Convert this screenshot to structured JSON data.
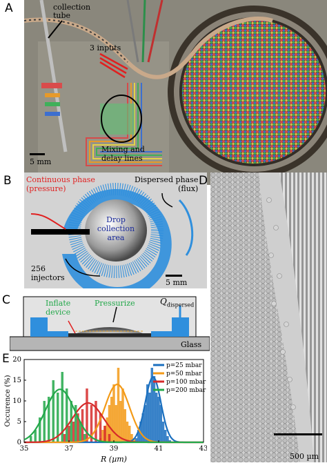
{
  "panels": {
    "A": {
      "label": "A",
      "annotations": {
        "collection_tube": "collection\ntube",
        "inputs": "3 inputs",
        "mixing": "Mixing and\ndelay lines",
        "scale": "5 mm"
      }
    },
    "B": {
      "label": "B",
      "annotations": {
        "continuous": "Continuous phase\n(pressure)",
        "dispersed": "Dispersed phase\n(flux)",
        "drop_area": "Drop\ncollection\narea",
        "injectors": "256\ninjectors",
        "scale": "5 mm"
      }
    },
    "C": {
      "label": "C",
      "annotations": {
        "inflate": "Inflate\ndevice",
        "pressurize": "Pressurize",
        "q_symbol": "Q",
        "q_sub": "dispersed",
        "glass": "Glass"
      }
    },
    "D": {
      "label": "D",
      "annotations": {
        "scale": "500 µm"
      }
    },
    "E": {
      "label": "E"
    }
  },
  "colors": {
    "device_blue": "#2f8fdd",
    "red": "#d62a2a",
    "green": "#23a84a",
    "orange": "#f39a17",
    "blue": "#1a6fbf"
  },
  "chart_data": {
    "type": "bar",
    "xlabel": "R (µm)",
    "ylabel": "Occurence (%)",
    "xlim": [
      35,
      43
    ],
    "ylim": [
      0,
      20
    ],
    "xticks": [
      35,
      37,
      39,
      41,
      43
    ],
    "yticks": [
      0,
      5,
      10,
      15,
      20
    ],
    "series": [
      {
        "name": "p=25 mbar",
        "color": "#1a6fbf",
        "x": [
          40.0,
          40.1,
          40.2,
          40.3,
          40.4,
          40.5,
          40.6,
          40.7,
          40.8,
          40.9,
          41.0,
          41.1,
          41.2,
          41.3,
          41.4,
          41.5
        ],
        "values": [
          1,
          3,
          5,
          7,
          9,
          14,
          12,
          18,
          16,
          12,
          11,
          9,
          5,
          3,
          1.5,
          0.5
        ],
        "fit": {
          "mean": 40.75,
          "sigma": 0.35,
          "peak": 15.8
        }
      },
      {
        "name": "p=50 mbar",
        "color": "#f39a17",
        "x": [
          38.4,
          38.5,
          38.6,
          38.7,
          38.8,
          38.9,
          39.0,
          39.1,
          39.2,
          39.3,
          39.4,
          39.5,
          39.6,
          39.7,
          39.8,
          39.9
        ],
        "values": [
          1,
          3,
          4,
          6,
          9,
          11,
          14,
          9,
          18,
          10,
          13,
          8,
          5,
          4,
          2,
          1
        ],
        "fit": {
          "mean": 39.15,
          "sigma": 0.55,
          "peak": 14.0
        }
      },
      {
        "name": "p=100 mbar",
        "color": "#d62a2a",
        "x": [
          36.8,
          37.0,
          37.2,
          37.4,
          37.6,
          37.8,
          38.0,
          38.2,
          38.4,
          38.6,
          38.8
        ],
        "values": [
          2,
          4,
          5,
          7,
          8,
          13,
          9,
          10,
          7,
          4,
          2
        ],
        "fit": {
          "mean": 37.85,
          "sigma": 0.7,
          "peak": 9.5
        }
      },
      {
        "name": "p=200 mbar",
        "color": "#23a84a",
        "x": [
          35.3,
          35.5,
          35.7,
          35.9,
          36.1,
          36.3,
          36.5,
          36.7,
          36.9,
          37.1,
          37.3,
          37.5,
          37.7
        ],
        "values": [
          1.5,
          3,
          6,
          10,
          11,
          15,
          12,
          17,
          13,
          10,
          9,
          5,
          2
        ],
        "fit": {
          "mean": 36.6,
          "sigma": 0.65,
          "peak": 12.8
        }
      }
    ],
    "legend": "top-right"
  }
}
